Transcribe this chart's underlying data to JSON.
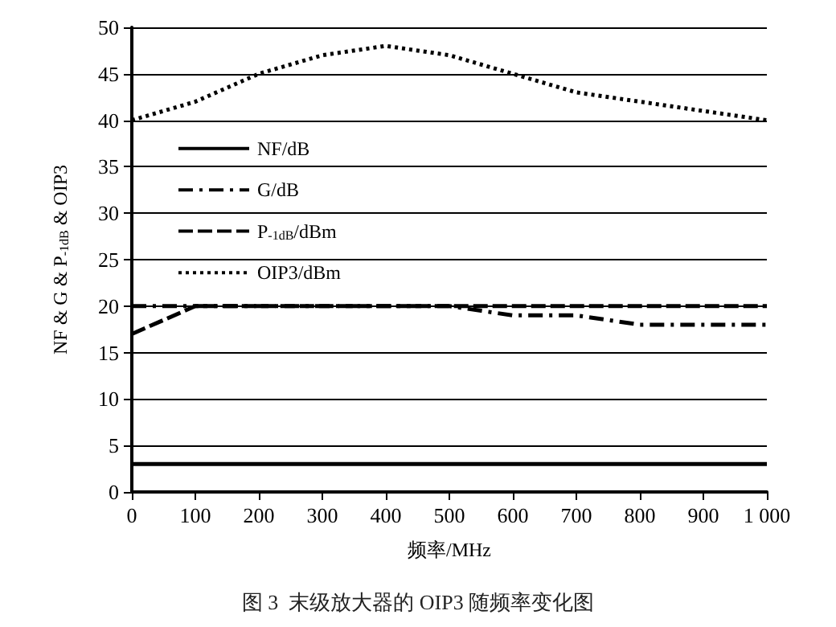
{
  "chart_data": {
    "type": "line",
    "title": "图 3  末级放大器的 OIP3 随频率变化图",
    "xlabel": "频率/MHz",
    "ylabel": "NF & G & P$_{-1dB}$ & OIP3",
    "x": [
      0,
      100,
      200,
      300,
      400,
      500,
      550,
      600,
      700,
      750,
      800,
      900,
      1000
    ],
    "series": [
      {
        "name": "NF/dB",
        "color": "#000000",
        "line_style": "solid",
        "values": [
          3,
          3,
          3,
          3,
          3,
          3,
          3,
          3,
          3,
          3,
          3,
          3,
          3
        ]
      },
      {
        "name": "G/dB",
        "color": "#000000",
        "line_style": "dashdot",
        "values": [
          20,
          20,
          20,
          20,
          20,
          20,
          19.5,
          19,
          19,
          18.5,
          18,
          18,
          18
        ]
      },
      {
        "name": "P$_{-1dB}$/dBm",
        "color": "#000000",
        "line_style": "dashed",
        "values": [
          17,
          20,
          20,
          20,
          20,
          20,
          20,
          20,
          20,
          20,
          20,
          20,
          20
        ]
      },
      {
        "name": "OIP3/dBm",
        "color": "#000000",
        "line_style": "dotted",
        "values": [
          40,
          42,
          45,
          47,
          48,
          47,
          46,
          45,
          43,
          42.5,
          42,
          41,
          40
        ]
      }
    ],
    "xlim": [
      0,
      1000
    ],
    "xticks": [
      0,
      100,
      200,
      300,
      400,
      500,
      600,
      700,
      800,
      900,
      {
        "value": 1000,
        "label": "1 000"
      }
    ],
    "ylim": [
      0,
      50
    ],
    "yticks": [
      0,
      5,
      10,
      15,
      20,
      25,
      30,
      35,
      40,
      45,
      50
    ],
    "grid": "y",
    "legend": "top left",
    "marker": "none"
  }
}
